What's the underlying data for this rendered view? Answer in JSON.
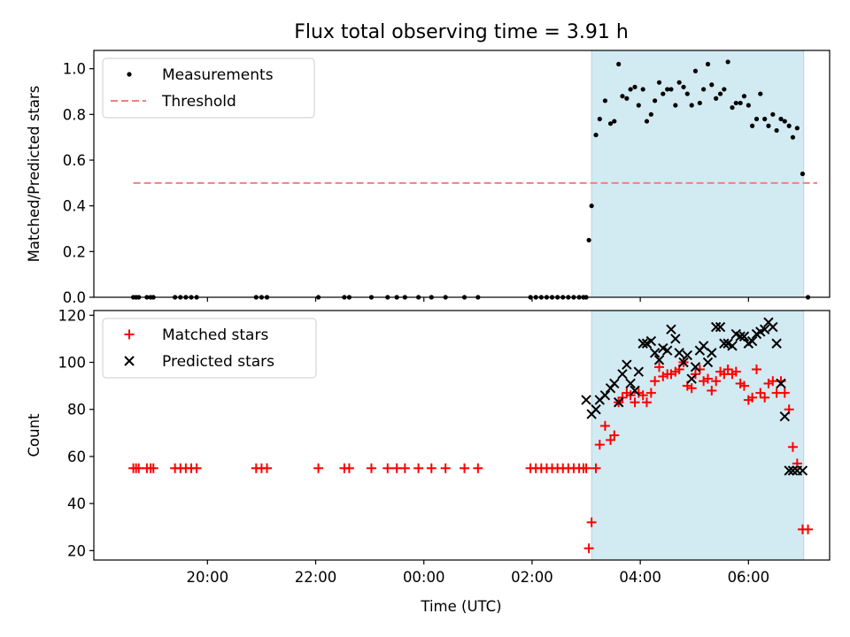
{
  "chart_data": {
    "title": "Flux total observing time = 3.91 h",
    "xlabel": "Time (UTC)",
    "x_unit": "hours",
    "x_ticks": [
      {
        "value": 20,
        "label": "20:00"
      },
      {
        "value": 22,
        "label": "22:00"
      },
      {
        "value": 24,
        "label": "00:00"
      },
      {
        "value": 26,
        "label": "02:00"
      },
      {
        "value": 28,
        "label": "04:00"
      },
      {
        "value": 30,
        "label": "06:00"
      }
    ],
    "xlim": [
      17.9,
      31.5
    ],
    "shaded_region": {
      "x": [
        27.1,
        31.02
      ],
      "color": "#add8e6"
    },
    "panels": [
      {
        "type": "scatter",
        "ylabel": "Matched/Predicted stars",
        "ylim": [
          0,
          1.08
        ],
        "yticks": [
          0.0,
          0.2,
          0.4,
          0.6,
          0.8,
          1.0
        ],
        "ytick_labels": [
          "0.0",
          "0.2",
          "0.4",
          "0.6",
          "0.8",
          "1.0"
        ],
        "legend": {
          "position": "upper left",
          "entries": [
            "Measurements",
            "Threshold"
          ]
        },
        "threshold": {
          "name": "Threshold",
          "value": 0.5,
          "x": [
            18.63,
            31.27
          ],
          "color": "#f08080",
          "style": "dashed"
        },
        "series": [
          {
            "name": "Measurements",
            "marker": "dot",
            "color": "#000000",
            "x": [
              18.63,
              18.68,
              18.73,
              18.88,
              18.95,
              19.0,
              19.4,
              19.5,
              19.6,
              19.7,
              19.8,
              20.9,
              21.0,
              21.1,
              22.05,
              22.53,
              22.62,
              23.03,
              23.33,
              23.5,
              23.65,
              23.9,
              24.14,
              24.4,
              24.75,
              25.0,
              25.97,
              26.07,
              26.17,
              26.27,
              26.37,
              26.47,
              26.57,
              26.67,
              26.77,
              26.87,
              26.95,
              27.0,
              27.05,
              27.1,
              27.18,
              27.25,
              27.35,
              27.45,
              27.52,
              27.6,
              27.67,
              27.75,
              27.82,
              27.9,
              27.97,
              28.05,
              28.12,
              28.2,
              28.27,
              28.35,
              28.42,
              28.5,
              28.57,
              28.65,
              28.72,
              28.8,
              28.87,
              28.95,
              29.02,
              29.1,
              29.17,
              29.25,
              29.32,
              29.4,
              29.48,
              29.55,
              29.62,
              29.7,
              29.77,
              29.85,
              29.92,
              30.0,
              30.07,
              30.15,
              30.22,
              30.3,
              30.37,
              30.45,
              30.52,
              30.6,
              30.67,
              30.75,
              30.82,
              30.9,
              31.0,
              31.1
            ],
            "y": [
              0,
              0,
              0,
              0,
              0,
              0,
              0,
              0,
              0,
              0,
              0,
              0,
              0,
              0,
              0,
              0,
              0,
              0,
              0,
              0,
              0,
              0,
              0,
              0,
              0,
              0,
              0,
              0,
              0,
              0,
              0,
              0,
              0,
              0,
              0,
              0,
              0,
              0,
              0.25,
              0.4,
              0.71,
              0.78,
              0.86,
              0.76,
              0.77,
              1.02,
              0.88,
              0.87,
              0.91,
              0.92,
              0.84,
              0.91,
              0.77,
              0.8,
              0.86,
              0.94,
              0.89,
              0.91,
              0.91,
              0.84,
              0.94,
              0.92,
              0.89,
              0.84,
              0.99,
              0.85,
              0.91,
              1.02,
              0.93,
              0.87,
              0.89,
              0.91,
              1.03,
              0.83,
              0.85,
              0.85,
              0.88,
              0.84,
              0.75,
              0.78,
              0.89,
              0.78,
              0.75,
              0.8,
              0.73,
              0.78,
              0.77,
              0.75,
              0.7,
              0.74,
              0.54,
              0
            ]
          }
        ]
      },
      {
        "type": "scatter",
        "ylabel": "Count",
        "ylim": [
          16,
          122
        ],
        "yticks": [
          20,
          40,
          60,
          80,
          100,
          120
        ],
        "ytick_labels": [
          "20",
          "40",
          "60",
          "80",
          "100",
          "120"
        ],
        "legend": {
          "position": "upper left",
          "entries": [
            "Matched stars",
            "Predicted stars"
          ]
        },
        "series": [
          {
            "name": "Matched stars",
            "marker": "plus",
            "color": "#ff0000",
            "x": [
              18.63,
              18.68,
              18.73,
              18.88,
              18.95,
              19.0,
              19.4,
              19.5,
              19.6,
              19.7,
              19.8,
              20.9,
              21.0,
              21.1,
              22.05,
              22.53,
              22.62,
              23.03,
              23.33,
              23.5,
              23.65,
              23.9,
              24.14,
              24.4,
              24.75,
              25.0,
              25.97,
              26.07,
              26.17,
              26.27,
              26.37,
              26.47,
              26.57,
              26.67,
              26.77,
              26.87,
              26.95,
              27.0,
              27.05,
              27.1,
              27.18,
              27.25,
              27.35,
              27.45,
              27.52,
              27.6,
              27.67,
              27.75,
              27.82,
              27.9,
              27.97,
              28.05,
              28.12,
              28.2,
              28.27,
              28.35,
              28.42,
              28.5,
              28.57,
              28.65,
              28.72,
              28.8,
              28.87,
              28.95,
              29.02,
              29.1,
              29.17,
              29.25,
              29.32,
              29.4,
              29.48,
              29.55,
              29.62,
              29.7,
              29.77,
              29.85,
              29.92,
              30.0,
              30.07,
              30.15,
              30.22,
              30.3,
              30.37,
              30.45,
              30.52,
              30.6,
              30.67,
              30.75,
              30.82,
              30.9,
              31.0,
              31.1
            ],
            "y": [
              55,
              55,
              55,
              55,
              55,
              55,
              55,
              55,
              55,
              55,
              55,
              55,
              55,
              55,
              55,
              55,
              55,
              55,
              55,
              55,
              55,
              55,
              55,
              55,
              55,
              55,
              55,
              55,
              55,
              55,
              55,
              55,
              55,
              55,
              55,
              55,
              55,
              55,
              21,
              32,
              55,
              65,
              73,
              67,
              69,
              83,
              85,
              87,
              86,
              83,
              87,
              86,
              83,
              87,
              92,
              98,
              94,
              95,
              95,
              96,
              97,
              100,
              90,
              89,
              95,
              97,
              92,
              93,
              88,
              92,
              96,
              95,
              97,
              95,
              96,
              91,
              90,
              84,
              85,
              97,
              87,
              85,
              91,
              92,
              87,
              92,
              87,
              80,
              64,
              57,
              29,
              29
            ]
          },
          {
            "name": "Predicted stars",
            "marker": "x",
            "color": "#000000",
            "x": [
              27.0,
              27.1,
              27.18,
              27.25,
              27.35,
              27.45,
              27.52,
              27.6,
              27.67,
              27.75,
              27.82,
              27.9,
              27.97,
              28.05,
              28.12,
              28.2,
              28.27,
              28.35,
              28.42,
              28.5,
              28.57,
              28.65,
              28.72,
              28.8,
              28.87,
              28.95,
              29.02,
              29.1,
              29.17,
              29.25,
              29.32,
              29.4,
              29.48,
              29.55,
              29.62,
              29.7,
              29.77,
              29.85,
              29.92,
              30.0,
              30.07,
              30.15,
              30.22,
              30.3,
              30.37,
              30.45,
              30.52,
              30.6,
              30.67,
              30.75,
              30.82,
              30.9,
              31.0
            ],
            "y": [
              84,
              78,
              80,
              84,
              86,
              89,
              91,
              83,
              95,
              99,
              91,
              88,
              96,
              108,
              108,
              109,
              104,
              101,
              106,
              105,
              114,
              110,
              104,
              100,
              103,
              93,
              98,
              105,
              107,
              100,
              104,
              115,
              115,
              108,
              108,
              107,
              112,
              111,
              111,
              108,
              109,
              112,
              113,
              114,
              117,
              115,
              108,
              91,
              77,
              54,
              54,
              54,
              54
            ]
          }
        ]
      }
    ]
  }
}
